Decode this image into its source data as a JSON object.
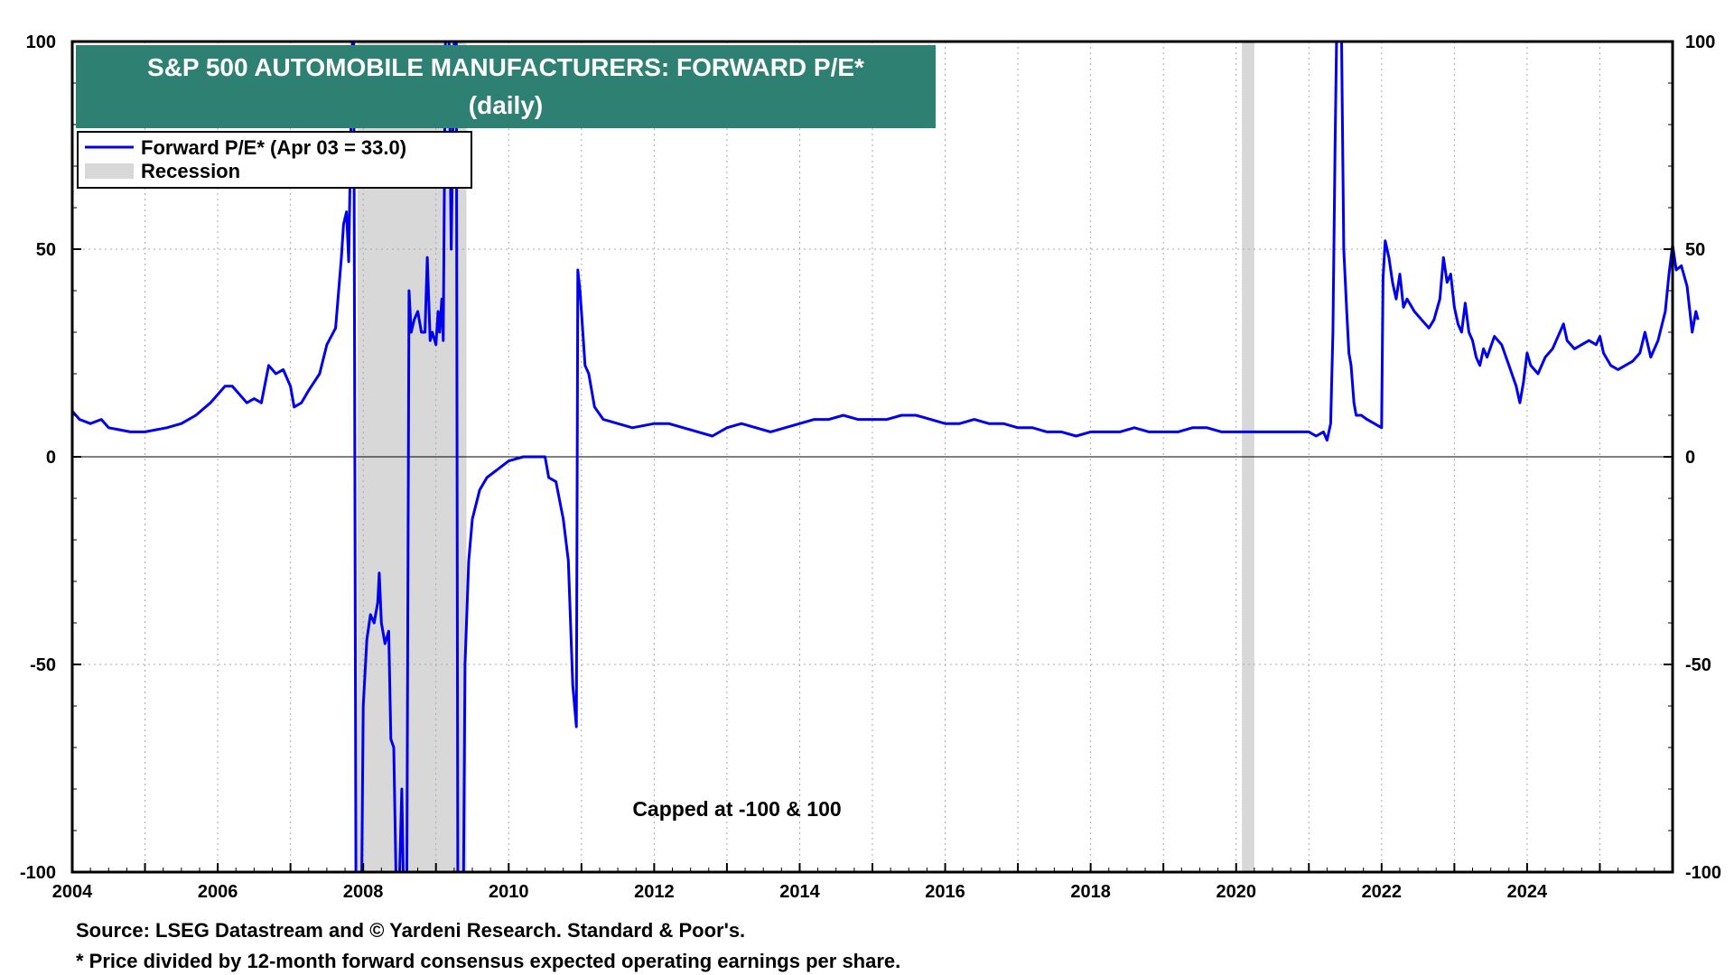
{
  "chart_data": {
    "type": "line",
    "title": "S&P 500 AUTOMOBILE MANUFACTURERS: FORWARD P/E*",
    "subtitle": "(daily)",
    "xlabel": "",
    "ylabel": "",
    "xlim": [
      2004,
      2026
    ],
    "ylim": [
      -100,
      100
    ],
    "x_ticks": [
      2004,
      2006,
      2008,
      2010,
      2012,
      2014,
      2016,
      2018,
      2020,
      2022,
      2024
    ],
    "y_ticks": [
      -100,
      -50,
      0,
      50,
      100
    ],
    "grid": true,
    "legend_position": "top-left",
    "annotation": "Capped at -100 & 100",
    "colors": {
      "line": "#0000ee",
      "recession": "#d8d8d8",
      "title_bg": "#2e8073"
    },
    "recessions": [
      {
        "start": 2007.92,
        "end": 2009.42
      },
      {
        "start": 2020.08,
        "end": 2020.25
      }
    ],
    "series": [
      {
        "name": "Forward P/E* (Apr 03 = 33.0)",
        "points": [
          [
            2004.0,
            11
          ],
          [
            2004.1,
            9
          ],
          [
            2004.25,
            8
          ],
          [
            2004.4,
            9
          ],
          [
            2004.5,
            7
          ],
          [
            2004.8,
            6
          ],
          [
            2005.0,
            6
          ],
          [
            2005.3,
            7
          ],
          [
            2005.5,
            8
          ],
          [
            2005.7,
            10
          ],
          [
            2005.9,
            13
          ],
          [
            2006.0,
            15
          ],
          [
            2006.1,
            17
          ],
          [
            2006.2,
            17
          ],
          [
            2006.3,
            15
          ],
          [
            2006.4,
            13
          ],
          [
            2006.5,
            14
          ],
          [
            2006.6,
            13
          ],
          [
            2006.7,
            22
          ],
          [
            2006.8,
            20
          ],
          [
            2006.9,
            21
          ],
          [
            2007.0,
            17
          ],
          [
            2007.05,
            12
          ],
          [
            2007.15,
            13
          ],
          [
            2007.25,
            16
          ],
          [
            2007.4,
            20
          ],
          [
            2007.5,
            27
          ],
          [
            2007.62,
            31
          ],
          [
            2007.7,
            48
          ],
          [
            2007.73,
            56
          ],
          [
            2007.77,
            59
          ],
          [
            2007.8,
            47
          ],
          [
            2007.85,
            100
          ],
          [
            2007.87,
            100
          ],
          [
            2007.9,
            -100
          ],
          [
            2007.98,
            -100
          ],
          [
            2008.0,
            -60
          ],
          [
            2008.05,
            -44
          ],
          [
            2008.1,
            -38
          ],
          [
            2008.15,
            -40
          ],
          [
            2008.2,
            -35
          ],
          [
            2008.22,
            -28
          ],
          [
            2008.25,
            -40
          ],
          [
            2008.3,
            -45
          ],
          [
            2008.35,
            -42
          ],
          [
            2008.38,
            -68
          ],
          [
            2008.42,
            -70
          ],
          [
            2008.45,
            -100
          ],
          [
            2008.5,
            -100
          ],
          [
            2008.53,
            -80
          ],
          [
            2008.55,
            -100
          ],
          [
            2008.6,
            -100
          ],
          [
            2008.63,
            40
          ],
          [
            2008.66,
            30
          ],
          [
            2008.7,
            33
          ],
          [
            2008.75,
            35
          ],
          [
            2008.8,
            30
          ],
          [
            2008.85,
            30
          ],
          [
            2008.88,
            48
          ],
          [
            2008.92,
            28
          ],
          [
            2008.95,
            30
          ],
          [
            2009.0,
            27
          ],
          [
            2009.03,
            35
          ],
          [
            2009.05,
            30
          ],
          [
            2009.08,
            38
          ],
          [
            2009.1,
            28
          ],
          [
            2009.13,
            100
          ],
          [
            2009.18,
            100
          ],
          [
            2009.21,
            50
          ],
          [
            2009.25,
            100
          ],
          [
            2009.28,
            100
          ],
          [
            2009.3,
            -100
          ],
          [
            2009.38,
            -100
          ],
          [
            2009.4,
            -50
          ],
          [
            2009.45,
            -25
          ],
          [
            2009.5,
            -15
          ],
          [
            2009.6,
            -8
          ],
          [
            2009.7,
            -5
          ],
          [
            2009.85,
            -3
          ],
          [
            2010.0,
            -1
          ],
          [
            2010.2,
            0
          ],
          [
            2010.4,
            0
          ],
          [
            2010.5,
            0
          ],
          [
            2010.55,
            -5
          ],
          [
            2010.65,
            -6
          ],
          [
            2010.75,
            -15
          ],
          [
            2010.82,
            -25
          ],
          [
            2010.88,
            -55
          ],
          [
            2010.93,
            -65
          ],
          [
            2010.95,
            45
          ],
          [
            2010.98,
            40
          ],
          [
            2011.0,
            35
          ],
          [
            2011.05,
            22
          ],
          [
            2011.1,
            20
          ],
          [
            2011.18,
            12
          ],
          [
            2011.3,
            9
          ],
          [
            2011.5,
            8
          ],
          [
            2011.7,
            7
          ],
          [
            2012.0,
            8
          ],
          [
            2012.2,
            8
          ],
          [
            2012.4,
            7
          ],
          [
            2012.6,
            6
          ],
          [
            2012.8,
            5
          ],
          [
            2013.0,
            7
          ],
          [
            2013.2,
            8
          ],
          [
            2013.4,
            7
          ],
          [
            2013.6,
            6
          ],
          [
            2013.8,
            7
          ],
          [
            2014.0,
            8
          ],
          [
            2014.2,
            9
          ],
          [
            2014.4,
            9
          ],
          [
            2014.6,
            10
          ],
          [
            2014.8,
            9
          ],
          [
            2015.0,
            9
          ],
          [
            2015.2,
            9
          ],
          [
            2015.4,
            10
          ],
          [
            2015.6,
            10
          ],
          [
            2015.8,
            9
          ],
          [
            2016.0,
            8
          ],
          [
            2016.2,
            8
          ],
          [
            2016.4,
            9
          ],
          [
            2016.6,
            8
          ],
          [
            2016.8,
            8
          ],
          [
            2017.0,
            7
          ],
          [
            2017.2,
            7
          ],
          [
            2017.4,
            6
          ],
          [
            2017.6,
            6
          ],
          [
            2017.8,
            5
          ],
          [
            2018.0,
            6
          ],
          [
            2018.2,
            6
          ],
          [
            2018.4,
            6
          ],
          [
            2018.6,
            7
          ],
          [
            2018.8,
            6
          ],
          [
            2019.0,
            6
          ],
          [
            2019.2,
            6
          ],
          [
            2019.4,
            7
          ],
          [
            2019.6,
            7
          ],
          [
            2019.8,
            6
          ],
          [
            2020.0,
            6
          ],
          [
            2020.2,
            6
          ],
          [
            2020.4,
            6
          ],
          [
            2020.6,
            6
          ],
          [
            2020.8,
            6
          ],
          [
            2021.0,
            6
          ],
          [
            2021.1,
            5
          ],
          [
            2021.2,
            6
          ],
          [
            2021.25,
            4
          ],
          [
            2021.3,
            8
          ],
          [
            2021.33,
            30
          ],
          [
            2021.36,
            75
          ],
          [
            2021.38,
            100
          ],
          [
            2021.45,
            100
          ],
          [
            2021.48,
            50
          ],
          [
            2021.52,
            35
          ],
          [
            2021.55,
            25
          ],
          [
            2021.58,
            22
          ],
          [
            2021.62,
            13
          ],
          [
            2021.65,
            10
          ],
          [
            2021.72,
            10
          ],
          [
            2021.8,
            9
          ],
          [
            2021.9,
            8
          ],
          [
            2022.0,
            7
          ],
          [
            2022.02,
            43
          ],
          [
            2022.05,
            52
          ],
          [
            2022.1,
            48
          ],
          [
            2022.15,
            42
          ],
          [
            2022.2,
            38
          ],
          [
            2022.25,
            44
          ],
          [
            2022.3,
            36
          ],
          [
            2022.35,
            38
          ],
          [
            2022.45,
            35
          ],
          [
            2022.55,
            33
          ],
          [
            2022.65,
            31
          ],
          [
            2022.72,
            33
          ],
          [
            2022.8,
            38
          ],
          [
            2022.85,
            48
          ],
          [
            2022.9,
            42
          ],
          [
            2022.95,
            44
          ],
          [
            2023.0,
            36
          ],
          [
            2023.05,
            32
          ],
          [
            2023.1,
            30
          ],
          [
            2023.15,
            37
          ],
          [
            2023.2,
            30
          ],
          [
            2023.25,
            28
          ],
          [
            2023.3,
            24
          ],
          [
            2023.35,
            22
          ],
          [
            2023.4,
            26
          ],
          [
            2023.45,
            24
          ],
          [
            2023.55,
            29
          ],
          [
            2023.65,
            27
          ],
          [
            2023.75,
            22
          ],
          [
            2023.85,
            17
          ],
          [
            2023.9,
            13
          ],
          [
            2023.95,
            18
          ],
          [
            2024.0,
            25
          ],
          [
            2024.05,
            22
          ],
          [
            2024.15,
            20
          ],
          [
            2024.25,
            24
          ],
          [
            2024.35,
            26
          ],
          [
            2024.45,
            30
          ],
          [
            2024.5,
            32
          ],
          [
            2024.55,
            28
          ],
          [
            2024.65,
            26
          ],
          [
            2024.75,
            27
          ],
          [
            2024.85,
            28
          ],
          [
            2024.95,
            27
          ],
          [
            2025.0,
            29
          ],
          [
            2025.05,
            25
          ],
          [
            2025.15,
            22
          ],
          [
            2025.25,
            21
          ],
          [
            2025.35,
            22
          ],
          [
            2025.45,
            23
          ],
          [
            2025.55,
            25
          ],
          [
            2025.62,
            30
          ],
          [
            2025.7,
            24
          ],
          [
            2025.8,
            28
          ],
          [
            2025.9,
            35
          ],
          [
            2025.95,
            44
          ],
          [
            2026.0,
            51
          ],
          [
            2026.05,
            45
          ],
          [
            2026.12,
            46
          ],
          [
            2026.2,
            41
          ],
          [
            2026.27,
            30
          ],
          [
            2026.32,
            35
          ],
          [
            2026.35,
            33
          ]
        ]
      }
    ]
  },
  "footer": {
    "source": "Source: LSEG Datastream and © Yardeni Research. Standard & Poor's.",
    "note": "* Price divided by 12-month forward consensus expected operating earnings per share."
  }
}
